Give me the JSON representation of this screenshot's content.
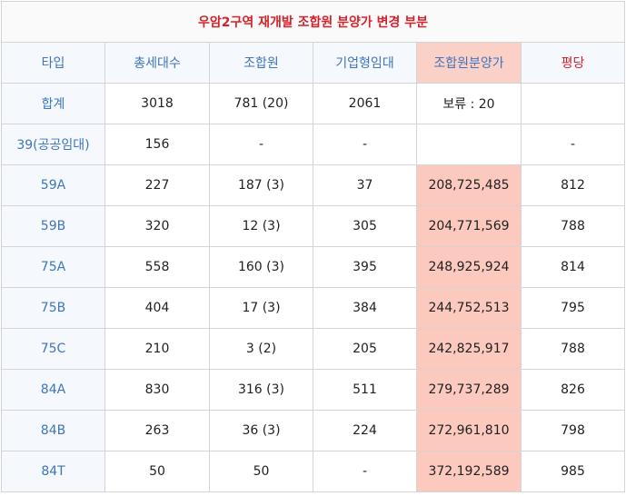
{
  "title": "우암2구역 재개발 조합원 분양가 변경 부분",
  "headers": [
    "타입",
    "총세대수",
    "조합원",
    "기업형임대",
    "조합원분양가",
    "평당"
  ],
  "rows": [
    {
      "type": "합계",
      "total": "3018",
      "member": "781 (20)",
      "rental": "2061",
      "price": "보류 : 20",
      "per_pyeong": ""
    },
    {
      "type": "39(공공임대)",
      "total": "156",
      "member": "-",
      "rental": "-",
      "price": "",
      "per_pyeong": "-"
    },
    {
      "type": "59A",
      "total": "227",
      "member": "187 (3)",
      "rental": "37",
      "price": "208,725,485",
      "per_pyeong": "812"
    },
    {
      "type": "59B",
      "total": "320",
      "member": "12 (3)",
      "rental": "305",
      "price": "204,771,569",
      "per_pyeong": "788"
    },
    {
      "type": "75A",
      "total": "558",
      "member": "160 (3)",
      "rental": "395",
      "price": "248,925,924",
      "per_pyeong": "814"
    },
    {
      "type": "75B",
      "total": "404",
      "member": "17 (3)",
      "rental": "384",
      "price": "244,752,513",
      "per_pyeong": "795"
    },
    {
      "type": "75C",
      "total": "210",
      "member": "3 (2)",
      "rental": "205",
      "price": "242,825,917",
      "per_pyeong": "788"
    },
    {
      "type": "84A",
      "total": "830",
      "member": "316 (3)",
      "rental": "511",
      "price": "279,737,289",
      "per_pyeong": "826"
    },
    {
      "type": "84B",
      "total": "263",
      "member": "36 (3)",
      "rental": "224",
      "price": "272,961,810",
      "per_pyeong": "798"
    },
    {
      "type": "84T",
      "total": "50",
      "member": "50",
      "rental": "-",
      "price": "372,192,589",
      "per_pyeong": "985"
    }
  ],
  "colors": {
    "title_text": "#d4232b",
    "type_text": "#3f75be",
    "header_bg": "#f5f8fc",
    "highlight_bg": "#fbc9be"
  }
}
